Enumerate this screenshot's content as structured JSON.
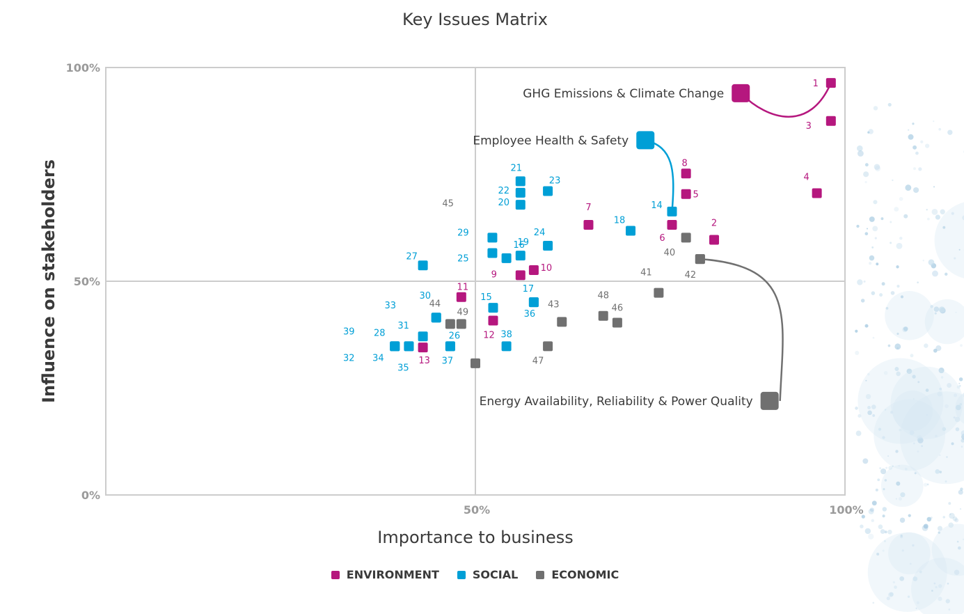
{
  "colors": {
    "environment": "#b5177e",
    "social": "#009fd6",
    "economic": "#707070",
    "grid": "#cccccc",
    "axis_text": "#9a9a9a"
  },
  "chart_data": {
    "type": "scatter",
    "title": "Key Issues Matrix",
    "xlabel": "Importance to business",
    "ylabel": "Influence on stakeholders",
    "xlim": [
      0,
      100
    ],
    "ylim": [
      0,
      100
    ],
    "x_ticks": [
      "50%",
      "100%"
    ],
    "y_ticks": [
      "0%",
      "50%",
      "100%"
    ],
    "legend": [
      {
        "key": "environment",
        "label": "ENVIRONMENT"
      },
      {
        "key": "social",
        "label": "SOCIAL"
      },
      {
        "key": "economic",
        "label": "ECONOMIC"
      }
    ],
    "points": [
      {
        "id": "1",
        "cat": "environment",
        "x": 98.1,
        "y": 96.4
      },
      {
        "id": "2",
        "cat": "environment",
        "x": 82.3,
        "y": 59.7
      },
      {
        "id": "3",
        "cat": "environment",
        "x": 98.1,
        "y": 87.5
      },
      {
        "id": "4",
        "cat": "environment",
        "x": 96.2,
        "y": 70.6
      },
      {
        "id": "5",
        "cat": "environment",
        "x": 78.5,
        "y": 70.4
      },
      {
        "id": "6",
        "cat": "environment",
        "x": 76.6,
        "y": 63.2
      },
      {
        "id": "7",
        "cat": "environment",
        "x": 65.3,
        "y": 63.2
      },
      {
        "id": "8",
        "cat": "environment",
        "x": 78.5,
        "y": 75.2
      },
      {
        "id": "9",
        "cat": "environment",
        "x": 56.1,
        "y": 51.4
      },
      {
        "id": "10",
        "cat": "environment",
        "x": 57.9,
        "y": 52.6
      },
      {
        "id": "11",
        "cat": "environment",
        "x": 48.1,
        "y": 46.3
      },
      {
        "id": "12",
        "cat": "environment",
        "x": 52.4,
        "y": 40.8
      },
      {
        "id": "13",
        "cat": "environment",
        "x": 42.9,
        "y": 34.5
      },
      {
        "id": "14",
        "cat": "social",
        "x": 76.6,
        "y": 66.3
      },
      {
        "id": "15",
        "cat": "social",
        "x": 52.4,
        "y": 43.8
      },
      {
        "id": "16",
        "cat": "social",
        "x": 54.2,
        "y": 55.4
      },
      {
        "id": "17",
        "cat": "social",
        "x": 57.9,
        "y": 45.1
      },
      {
        "id": "18",
        "cat": "social",
        "x": 71.0,
        "y": 61.8
      },
      {
        "id": "19",
        "cat": "social",
        "x": 56.1,
        "y": 56.0
      },
      {
        "id": "20",
        "cat": "social",
        "x": 56.1,
        "y": 67.9
      },
      {
        "id": "21",
        "cat": "social",
        "x": 56.1,
        "y": 73.4
      },
      {
        "id": "22",
        "cat": "social",
        "x": 56.1,
        "y": 70.7
      },
      {
        "id": "23",
        "cat": "social",
        "x": 59.8,
        "y": 71.1
      },
      {
        "id": "24",
        "cat": "social",
        "x": 59.8,
        "y": 58.3
      },
      {
        "id": "25",
        "cat": "social",
        "x": 52.3,
        "y": 56.6
      },
      {
        "id": "26",
        "cat": "social",
        "x": 46.6,
        "y": 34.8
      },
      {
        "id": "27",
        "cat": "social",
        "x": 42.9,
        "y": 53.7
      },
      {
        "id": "28",
        "cat": "social",
        "x": 39.1,
        "y": 34.8
      },
      {
        "id": "29",
        "cat": "social",
        "x": 52.3,
        "y": 60.2
      },
      {
        "id": "30",
        "cat": "social",
        "x": 44.7,
        "y": 41.5
      },
      {
        "id": "31",
        "cat": "social",
        "x": 42.9,
        "y": 37.1
      },
      {
        "id": "32",
        "cat": "social",
        "x": 39.1,
        "y": 34.8
      },
      {
        "id": "33",
        "cat": "social",
        "x": 44.7,
        "y": 41.5
      },
      {
        "id": "34",
        "cat": "social",
        "x": 41.0,
        "y": 34.8
      },
      {
        "id": "35",
        "cat": "social",
        "x": 41.0,
        "y": 34.8
      },
      {
        "id": "36",
        "cat": "social",
        "x": 57.9,
        "y": 45.1
      },
      {
        "id": "37",
        "cat": "social",
        "x": 46.6,
        "y": 34.8
      },
      {
        "id": "38",
        "cat": "social",
        "x": 54.2,
        "y": 34.8
      },
      {
        "id": "39",
        "cat": "social",
        "x": 39.1,
        "y": 34.8
      },
      {
        "id": "40",
        "cat": "economic",
        "x": 80.4,
        "y": 55.2
      },
      {
        "id": "41",
        "cat": "economic",
        "x": 74.8,
        "y": 47.3
      },
      {
        "id": "42",
        "cat": "economic",
        "x": 80.4,
        "y": 55.2
      },
      {
        "id": "43",
        "cat": "economic",
        "x": 61.7,
        "y": 40.5
      },
      {
        "id": "44",
        "cat": "economic",
        "x": 46.6,
        "y": 40.0
      },
      {
        "id": "45",
        "cat": "economic",
        "x": 78.5,
        "y": 60.2
      },
      {
        "id": "46",
        "cat": "economic",
        "x": 69.2,
        "y": 40.3
      },
      {
        "id": "47",
        "cat": "economic",
        "x": 59.8,
        "y": 34.8
      },
      {
        "id": "48",
        "cat": "economic",
        "x": 67.3,
        "y": 41.9
      },
      {
        "id": "49",
        "cat": "economic",
        "x": 48.1,
        "y": 40.0
      },
      {
        "id": "",
        "cat": "economic",
        "x": 50.0,
        "y": 30.8
      }
    ],
    "callouts": [
      {
        "text": "GHG Emissions & Climate Change",
        "cat": "environment",
        "x": 85.9,
        "y": 94.0,
        "target": "1"
      },
      {
        "text": "Employee Health & Safety",
        "cat": "social",
        "x": 73.0,
        "y": 83.0,
        "target": "14"
      },
      {
        "text": "Energy Availability, Reliability & Power Quality",
        "cat": "economic",
        "x": 89.8,
        "y": 22.0,
        "target": "42"
      }
    ]
  }
}
